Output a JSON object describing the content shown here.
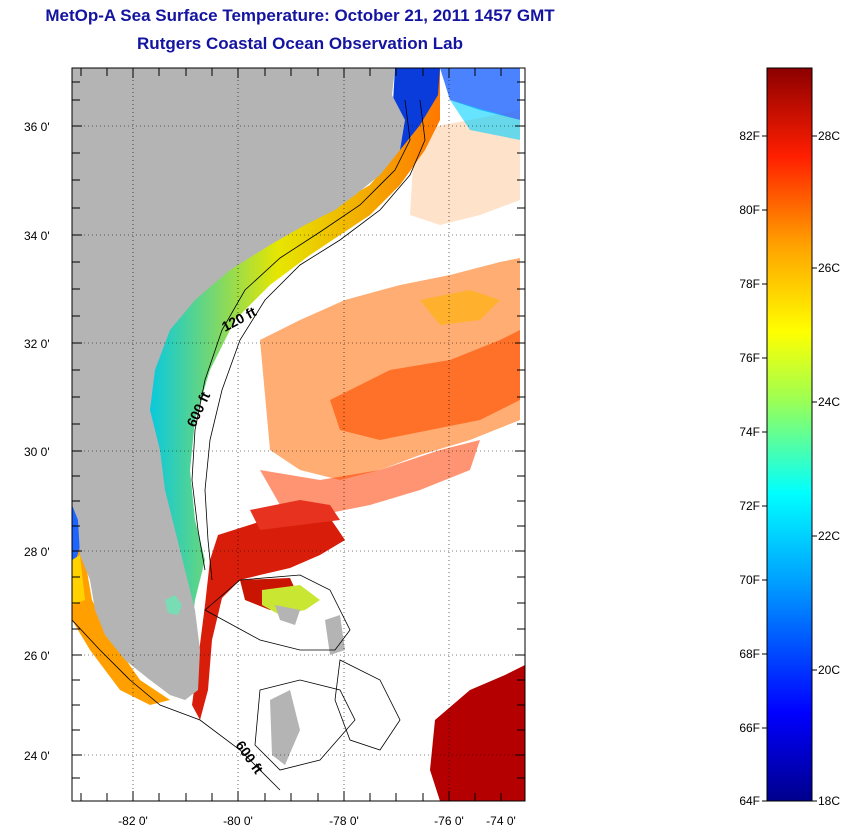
{
  "header": {
    "title": "MetOp-A Sea Surface Temperature:  October 21, 2011 1457 GMT",
    "subtitle": "Rutgers Coastal Ocean Observation Lab"
  },
  "map": {
    "lon_ticks": [
      "-82 0'",
      "-80 0'",
      "-78 0'",
      "-76 0'",
      "-74 0'"
    ],
    "lat_ticks": [
      "36 0'",
      "34 0'",
      "32 0'",
      "30 0'",
      "28 0'",
      "26 0'",
      "24 0'"
    ],
    "contour_labels": [
      "120 ft",
      "600 ft",
      "600 ft"
    ],
    "colors": {
      "land": "#b4b4b4",
      "warm": "#d81e0a",
      "hot": "#b40000",
      "orange": "#ff8c00",
      "yellow": "#ffd200",
      "cyan": "#00d2d2",
      "blue": "#0a3cdc"
    }
  },
  "colorbar": {
    "fahrenheit_labels": [
      "82F",
      "80F",
      "78F",
      "76F",
      "74F",
      "72F",
      "70F",
      "68F",
      "66F",
      "64F"
    ],
    "celsius_labels": [
      "28C",
      "26C",
      "24C",
      "22C",
      "20C",
      "18C"
    ]
  }
}
